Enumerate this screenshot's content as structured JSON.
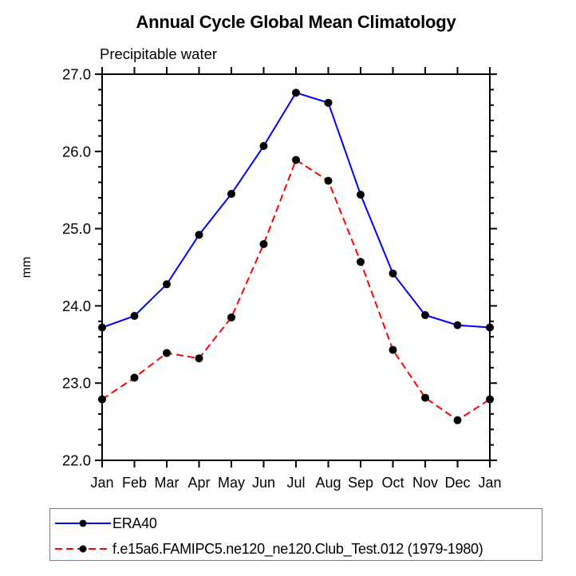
{
  "title": "Annual Cycle Global Mean Climatology",
  "subtitle": "Precipitable water",
  "legend": {
    "items": [
      {
        "label": "ERA40",
        "color": "#0000ff",
        "line_style": "solid",
        "marker": "black-dot"
      },
      {
        "label": "f.e15a6.FAMIPC5.ne120_ne120.Club_Test.012 (1979-1980)",
        "color": "#ff0000",
        "line_style": "dashed",
        "marker": "black-dot"
      }
    ]
  },
  "chart_data": {
    "type": "line",
    "title": "Annual Cycle Global Mean Climatology",
    "subtitle": "Precipitable water",
    "ylabel": "mm",
    "xlabel": "",
    "categories": [
      "Jan",
      "Feb",
      "Mar",
      "Apr",
      "May",
      "Jun",
      "Jul",
      "Aug",
      "Sep",
      "Oct",
      "Nov",
      "Dec",
      "Jan"
    ],
    "series": [
      {
        "name": "ERA40",
        "color": "#0000ff",
        "style": "solid",
        "marker": "black-dot",
        "values": [
          23.72,
          23.87,
          24.28,
          24.92,
          25.45,
          26.07,
          26.76,
          26.63,
          25.44,
          24.42,
          23.88,
          23.75,
          23.72
        ]
      },
      {
        "name": "f.e15a6.FAMIPC5.ne120_ne120.Club_Test.012 (1979-1980)",
        "color": "#ff0000",
        "style": "dashed",
        "marker": "black-dot",
        "values": [
          22.79,
          23.07,
          23.39,
          23.32,
          23.85,
          24.8,
          25.89,
          25.62,
          24.57,
          23.43,
          22.81,
          22.52,
          22.79
        ]
      }
    ],
    "ylim": [
      22.0,
      27.0
    ],
    "ytick_step": 1.0,
    "ytick_minor_step": 0.2,
    "ytick_labels": [
      "22.0",
      "23.0",
      "24.0",
      "25.0",
      "26.0",
      "27.0"
    ],
    "xtick_minor": false,
    "grid": false,
    "axis_color": "#000000",
    "marker_color": "#000000",
    "legend_position": "bottom-left-box"
  }
}
